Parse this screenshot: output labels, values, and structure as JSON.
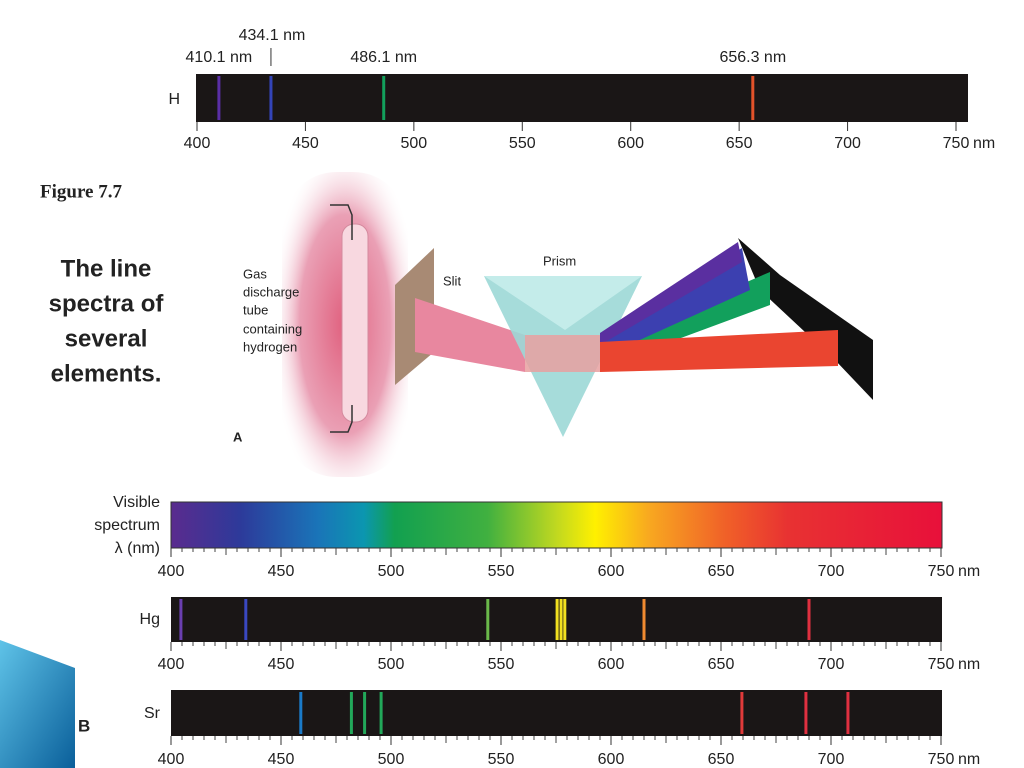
{
  "figure": {
    "label": "Figure 7.7",
    "caption": [
      "The line",
      "spectra of",
      "several",
      "elements."
    ]
  },
  "h_spectrum": {
    "element": "H",
    "lines": {
      "values": [
        410.1,
        434.1,
        486.1,
        656.3
      ],
      "value_labels": [
        "410.1 nm",
        "434.1 nm",
        "486.1 nm",
        "656.3 nm"
      ],
      "colors": [
        "#5b2fa6",
        "#3344b8",
        "#12a05c",
        "#e2522a"
      ]
    },
    "axis": {
      "ticks": [
        400,
        450,
        500,
        550,
        600,
        650,
        700,
        750
      ],
      "unit": "nm"
    }
  },
  "apparatus": {
    "panel": "A",
    "tube_label": [
      "Gas",
      "discharge",
      "tube",
      "containing",
      "hydrogen"
    ],
    "slit_label": "Slit",
    "prism_label": "Prism"
  },
  "panel_b": {
    "label": "B",
    "visible": {
      "label": [
        "Visible",
        "spectrum",
        "λ (nm)"
      ],
      "axis": {
        "ticks": [
          400,
          450,
          500,
          550,
          600,
          650,
          700,
          750
        ],
        "unit": "nm"
      }
    },
    "hg": {
      "element": "Hg",
      "lines": {
        "values": [
          404.5,
          434,
          544,
          575.5,
          577.3,
          579,
          615,
          690
        ],
        "colors": [
          "#6a3fb0",
          "#3a48c0",
          "#6ab84a",
          "#f2e020",
          "#f2e020",
          "#f2e020",
          "#f08a30",
          "#e03040"
        ]
      },
      "axis": {
        "ticks": [
          400,
          450,
          500,
          550,
          600,
          650,
          700,
          750
        ],
        "unit": "nm"
      }
    },
    "sr": {
      "element": "Sr",
      "lines": {
        "values": [
          459,
          482,
          488,
          495.5,
          659.5,
          688.6,
          707.7
        ],
        "colors": [
          "#1a7ac8",
          "#22a85a",
          "#22a85a",
          "#22a85a",
          "#e03a3a",
          "#e03040",
          "#e03040"
        ]
      },
      "axis": {
        "ticks": [
          400,
          450,
          500,
          550,
          600,
          650,
          700,
          750
        ],
        "unit": "nm"
      }
    }
  }
}
